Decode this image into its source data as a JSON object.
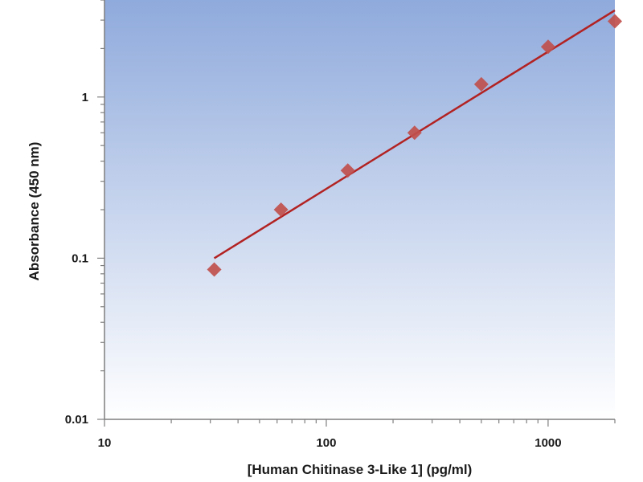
{
  "chart_data": {
    "type": "scatter",
    "xlabel": "[Human Chitinase 3-Like 1] (pg/ml)",
    "ylabel": "Absorbance (450 nm)",
    "xscale": "log",
    "yscale": "log",
    "xlim": [
      10,
      2000
    ],
    "ylim": [
      0.01,
      4
    ],
    "grid": false,
    "x_tick_labels": [
      "10",
      "100",
      "1000"
    ],
    "y_tick_labels": [
      "0.01",
      "0.1",
      "1"
    ],
    "series": [
      {
        "type": "scatter",
        "marker": "diamond",
        "color": "#c0504d",
        "points": [
          {
            "x": 31.25,
            "y": 0.085
          },
          {
            "x": 62.5,
            "y": 0.2
          },
          {
            "x": 125,
            "y": 0.35
          },
          {
            "x": 250,
            "y": 0.6
          },
          {
            "x": 500,
            "y": 1.2
          },
          {
            "x": 1000,
            "y": 2.05
          },
          {
            "x": 2000,
            "y": 2.95
          }
        ]
      },
      {
        "type": "line",
        "color": "#b22222",
        "points": [
          {
            "x": 31.25,
            "y": 0.1
          },
          {
            "x": 2000,
            "y": 3.45
          }
        ]
      }
    ],
    "background_gradient": [
      "#8faadc",
      "#ffffff"
    ]
  }
}
